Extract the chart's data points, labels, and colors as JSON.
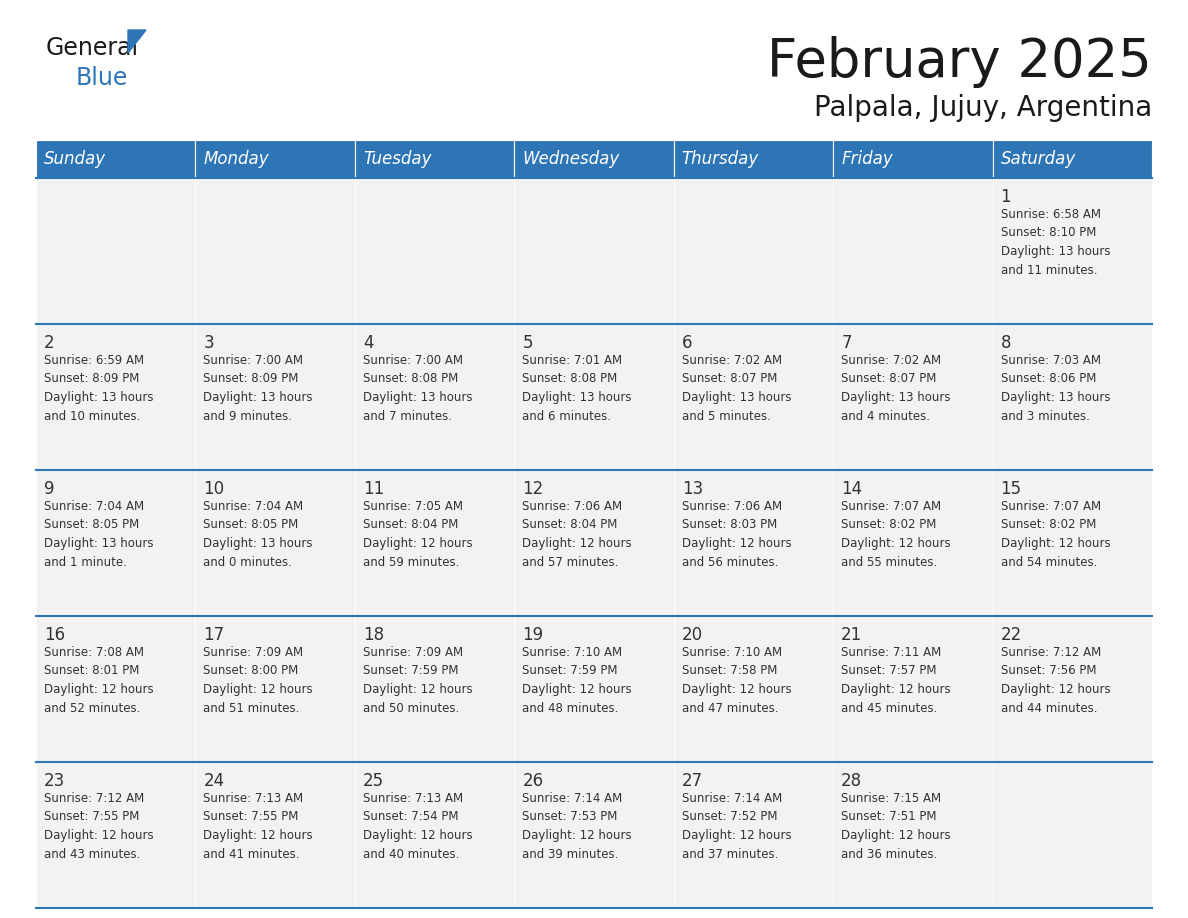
{
  "title": "February 2025",
  "subtitle": "Palpala, Jujuy, Argentina",
  "days_of_week": [
    "Sunday",
    "Monday",
    "Tuesday",
    "Wednesday",
    "Thursday",
    "Friday",
    "Saturday"
  ],
  "header_bg": "#2E75B6",
  "header_text": "#FFFFFF",
  "row_bg": "#F2F2F2",
  "cell_border_color": "#2E75B6",
  "day_number_color": "#333333",
  "info_text_color": "#333333",
  "title_color": "#1a1a1a",
  "subtitle_color": "#1a1a1a",
  "logo_general_color": "#1a1a1a",
  "logo_blue_color": "#2E75B6",
  "calendar_data": [
    [
      {
        "day": null,
        "info": ""
      },
      {
        "day": null,
        "info": ""
      },
      {
        "day": null,
        "info": ""
      },
      {
        "day": null,
        "info": ""
      },
      {
        "day": null,
        "info": ""
      },
      {
        "day": null,
        "info": ""
      },
      {
        "day": 1,
        "info": "Sunrise: 6:58 AM\nSunset: 8:10 PM\nDaylight: 13 hours\nand 11 minutes."
      }
    ],
    [
      {
        "day": 2,
        "info": "Sunrise: 6:59 AM\nSunset: 8:09 PM\nDaylight: 13 hours\nand 10 minutes."
      },
      {
        "day": 3,
        "info": "Sunrise: 7:00 AM\nSunset: 8:09 PM\nDaylight: 13 hours\nand 9 minutes."
      },
      {
        "day": 4,
        "info": "Sunrise: 7:00 AM\nSunset: 8:08 PM\nDaylight: 13 hours\nand 7 minutes."
      },
      {
        "day": 5,
        "info": "Sunrise: 7:01 AM\nSunset: 8:08 PM\nDaylight: 13 hours\nand 6 minutes."
      },
      {
        "day": 6,
        "info": "Sunrise: 7:02 AM\nSunset: 8:07 PM\nDaylight: 13 hours\nand 5 minutes."
      },
      {
        "day": 7,
        "info": "Sunrise: 7:02 AM\nSunset: 8:07 PM\nDaylight: 13 hours\nand 4 minutes."
      },
      {
        "day": 8,
        "info": "Sunrise: 7:03 AM\nSunset: 8:06 PM\nDaylight: 13 hours\nand 3 minutes."
      }
    ],
    [
      {
        "day": 9,
        "info": "Sunrise: 7:04 AM\nSunset: 8:05 PM\nDaylight: 13 hours\nand 1 minute."
      },
      {
        "day": 10,
        "info": "Sunrise: 7:04 AM\nSunset: 8:05 PM\nDaylight: 13 hours\nand 0 minutes."
      },
      {
        "day": 11,
        "info": "Sunrise: 7:05 AM\nSunset: 8:04 PM\nDaylight: 12 hours\nand 59 minutes."
      },
      {
        "day": 12,
        "info": "Sunrise: 7:06 AM\nSunset: 8:04 PM\nDaylight: 12 hours\nand 57 minutes."
      },
      {
        "day": 13,
        "info": "Sunrise: 7:06 AM\nSunset: 8:03 PM\nDaylight: 12 hours\nand 56 minutes."
      },
      {
        "day": 14,
        "info": "Sunrise: 7:07 AM\nSunset: 8:02 PM\nDaylight: 12 hours\nand 55 minutes."
      },
      {
        "day": 15,
        "info": "Sunrise: 7:07 AM\nSunset: 8:02 PM\nDaylight: 12 hours\nand 54 minutes."
      }
    ],
    [
      {
        "day": 16,
        "info": "Sunrise: 7:08 AM\nSunset: 8:01 PM\nDaylight: 12 hours\nand 52 minutes."
      },
      {
        "day": 17,
        "info": "Sunrise: 7:09 AM\nSunset: 8:00 PM\nDaylight: 12 hours\nand 51 minutes."
      },
      {
        "day": 18,
        "info": "Sunrise: 7:09 AM\nSunset: 7:59 PM\nDaylight: 12 hours\nand 50 minutes."
      },
      {
        "day": 19,
        "info": "Sunrise: 7:10 AM\nSunset: 7:59 PM\nDaylight: 12 hours\nand 48 minutes."
      },
      {
        "day": 20,
        "info": "Sunrise: 7:10 AM\nSunset: 7:58 PM\nDaylight: 12 hours\nand 47 minutes."
      },
      {
        "day": 21,
        "info": "Sunrise: 7:11 AM\nSunset: 7:57 PM\nDaylight: 12 hours\nand 45 minutes."
      },
      {
        "day": 22,
        "info": "Sunrise: 7:12 AM\nSunset: 7:56 PM\nDaylight: 12 hours\nand 44 minutes."
      }
    ],
    [
      {
        "day": 23,
        "info": "Sunrise: 7:12 AM\nSunset: 7:55 PM\nDaylight: 12 hours\nand 43 minutes."
      },
      {
        "day": 24,
        "info": "Sunrise: 7:13 AM\nSunset: 7:55 PM\nDaylight: 12 hours\nand 41 minutes."
      },
      {
        "day": 25,
        "info": "Sunrise: 7:13 AM\nSunset: 7:54 PM\nDaylight: 12 hours\nand 40 minutes."
      },
      {
        "day": 26,
        "info": "Sunrise: 7:14 AM\nSunset: 7:53 PM\nDaylight: 12 hours\nand 39 minutes."
      },
      {
        "day": 27,
        "info": "Sunrise: 7:14 AM\nSunset: 7:52 PM\nDaylight: 12 hours\nand 37 minutes."
      },
      {
        "day": 28,
        "info": "Sunrise: 7:15 AM\nSunset: 7:51 PM\nDaylight: 12 hours\nand 36 minutes."
      },
      {
        "day": null,
        "info": ""
      }
    ]
  ]
}
